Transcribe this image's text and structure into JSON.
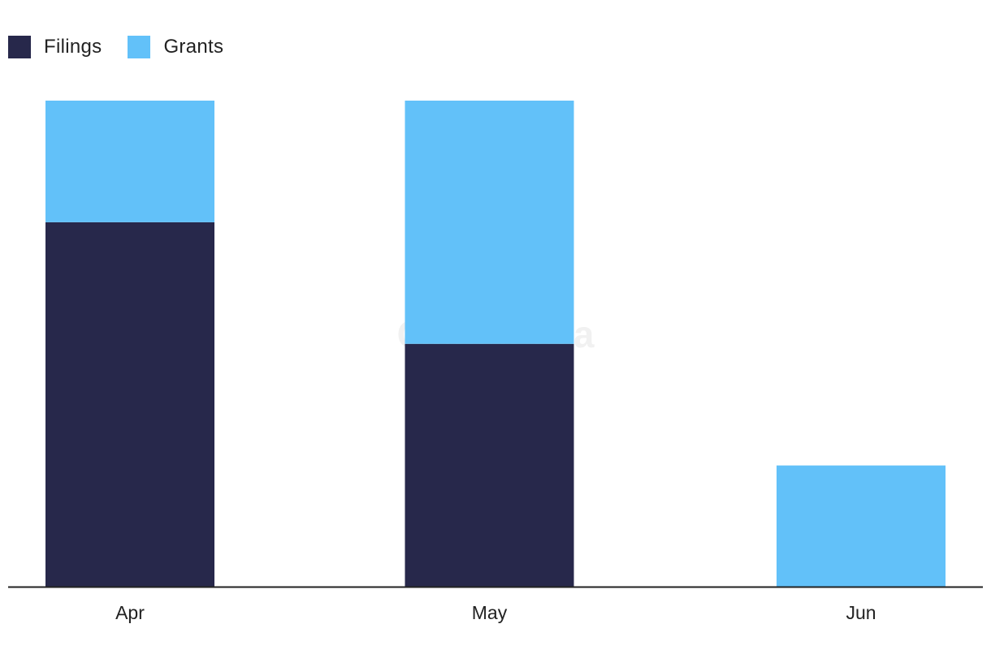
{
  "chart_data": {
    "type": "bar",
    "stacked": true,
    "categories": [
      "Apr",
      "May",
      "Jun"
    ],
    "series": [
      {
        "name": "Filings",
        "color": "#27284b",
        "values": [
          3,
          2,
          0
        ]
      },
      {
        "name": "Grants",
        "color": "#62c1f9",
        "values": [
          1,
          2,
          1
        ]
      }
    ],
    "ylim": [
      0,
      4
    ],
    "grid": false,
    "legend_position": "top-left",
    "watermark": "GlobalData"
  },
  "legend": {
    "items": [
      {
        "label": "Filings",
        "color": "#27284b"
      },
      {
        "label": "Grants",
        "color": "#62c1f9"
      }
    ]
  },
  "colors": {
    "axis": "#222222",
    "tick_text": "#222222",
    "watermark": "#f1f1f1"
  }
}
